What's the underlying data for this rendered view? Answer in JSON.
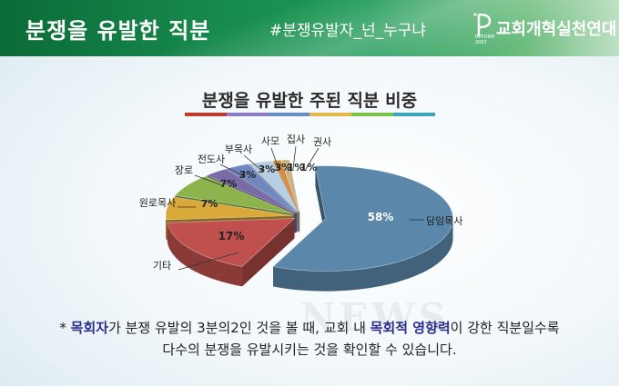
{
  "header": {
    "title": "분쟁을 유발한 직분",
    "hashtag": "#분쟁유발자_넌_누구냐",
    "org_name": "교회개혁실천연대",
    "logo_text_line1": "REFORM",
    "logo_text_line2": "2002"
  },
  "palette_colors": [
    "#c0392b",
    "#8e7cc3",
    "#6a8fc7",
    "#e1b94a",
    "#7dc24b",
    "#3aa7b8"
  ],
  "watermark": "NEWS",
  "chart_data": {
    "type": "pie",
    "title": "분쟁을 유발한 주된 직분 비중",
    "slices": [
      {
        "label": "담임목사",
        "value": 58,
        "value_label": "58%",
        "color": "#5b87ab"
      },
      {
        "label": "기타",
        "value": 17,
        "value_label": "17%",
        "color": "#c0504d"
      },
      {
        "label": "원로목사",
        "value": 7,
        "value_label": "7%",
        "color": "#d9a93a"
      },
      {
        "label": "장로",
        "value": 7,
        "value_label": "7%",
        "color": "#8db34c"
      },
      {
        "label": "전도사",
        "value": 3,
        "value_label": "3%",
        "color": "#7a6aa8"
      },
      {
        "label": "부목사",
        "value": 3,
        "value_label": "3%",
        "color": "#6f88c0"
      },
      {
        "label": "사모",
        "value": 3,
        "value_label": "3%",
        "color": "#b7cfe3"
      },
      {
        "label": "집사",
        "value": 1,
        "value_label": "1%",
        "color": "#d98c3d"
      },
      {
        "label": "권사",
        "value": 1,
        "value_label": "1%",
        "color": "#c8b48a"
      }
    ]
  },
  "note": {
    "prefix": "* ",
    "hl1": "목회자",
    "part1": "가 분쟁 유발의 3분의2인 것을 볼 때, 교회 내 ",
    "hl2": "목회적 영향력",
    "part2": "이 강한 직분일수록",
    "line2": "다수의 분쟁을 유발시키는 것을 확인할 수 있습니다."
  }
}
